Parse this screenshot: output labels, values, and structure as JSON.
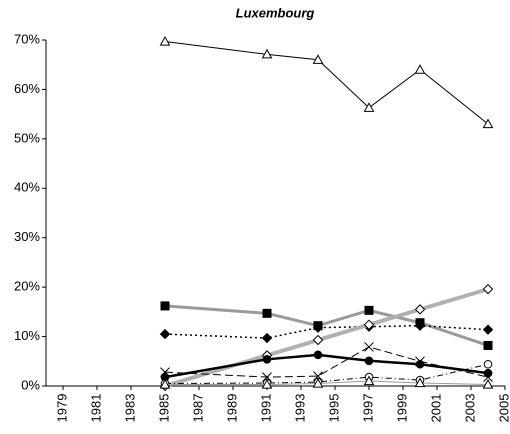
{
  "chart_data": {
    "type": "line",
    "title": "Luxembourg",
    "x": [
      1985,
      1991,
      1994,
      1997,
      2000,
      2004
    ],
    "xlim": [
      1978,
      2005
    ],
    "xticks": [
      1979,
      1981,
      1983,
      1985,
      1987,
      1989,
      1991,
      1993,
      1995,
      1997,
      1999,
      2001,
      2003,
      2005
    ],
    "ylim": [
      0,
      70
    ],
    "yticks": [
      {
        "value": 0,
        "label": "0%"
      },
      {
        "value": 10,
        "label": "10%"
      },
      {
        "value": 20,
        "label": "20%"
      },
      {
        "value": 30,
        "label": "30%"
      },
      {
        "value": 40,
        "label": "40%"
      },
      {
        "value": 50,
        "label": "50%"
      },
      {
        "value": 60,
        "label": "60%"
      },
      {
        "value": 70,
        "label": "70%"
      }
    ],
    "grid": false,
    "series": [
      {
        "color": "#000000",
        "width": 1,
        "dash": "",
        "marker": "triangle-open",
        "values": [
          69.7,
          67.1,
          66,
          56.3,
          64,
          53
        ]
      },
      {
        "color": "#9a9a9a",
        "width": 3,
        "dash": "",
        "marker": "square",
        "values": [
          16.2,
          14.7,
          12.2,
          15.3,
          12.8,
          8.2
        ]
      },
      {
        "color": "#000000",
        "width": 1.5,
        "dash": "2,3",
        "marker": "diamond",
        "values": [
          10.5,
          9.7,
          11.8,
          12,
          12.2,
          11.4
        ]
      },
      {
        "color": "#b0b0b0",
        "width": 4,
        "dash": "",
        "marker": "diamond-open",
        "values": [
          0,
          6.2,
          9.3,
          12.4,
          15.5,
          19.6
        ]
      },
      {
        "color": "#000000",
        "width": 2.5,
        "dash": "",
        "marker": "circle",
        "values": [
          1.8,
          5.4,
          6.3,
          5.1,
          4.4,
          2.6
        ]
      },
      {
        "color": "#000000",
        "width": 1,
        "dash": "8,4",
        "marker": "x",
        "values": [
          2.8,
          1.8,
          2.0,
          7.9,
          5.0,
          1.8
        ]
      },
      {
        "color": "#000000",
        "width": 1,
        "dash": "6,3,1,3",
        "marker": "circle-open",
        "values": [
          0.5,
          0.6,
          0.8,
          1.8,
          1.2,
          4.4
        ]
      },
      {
        "color": "#9a9a9a",
        "width": 1,
        "dash": "",
        "marker": "triangle-open",
        "values": [
          0.3,
          0.3,
          0.5,
          1.0,
          0.6,
          0.3
        ]
      }
    ]
  }
}
